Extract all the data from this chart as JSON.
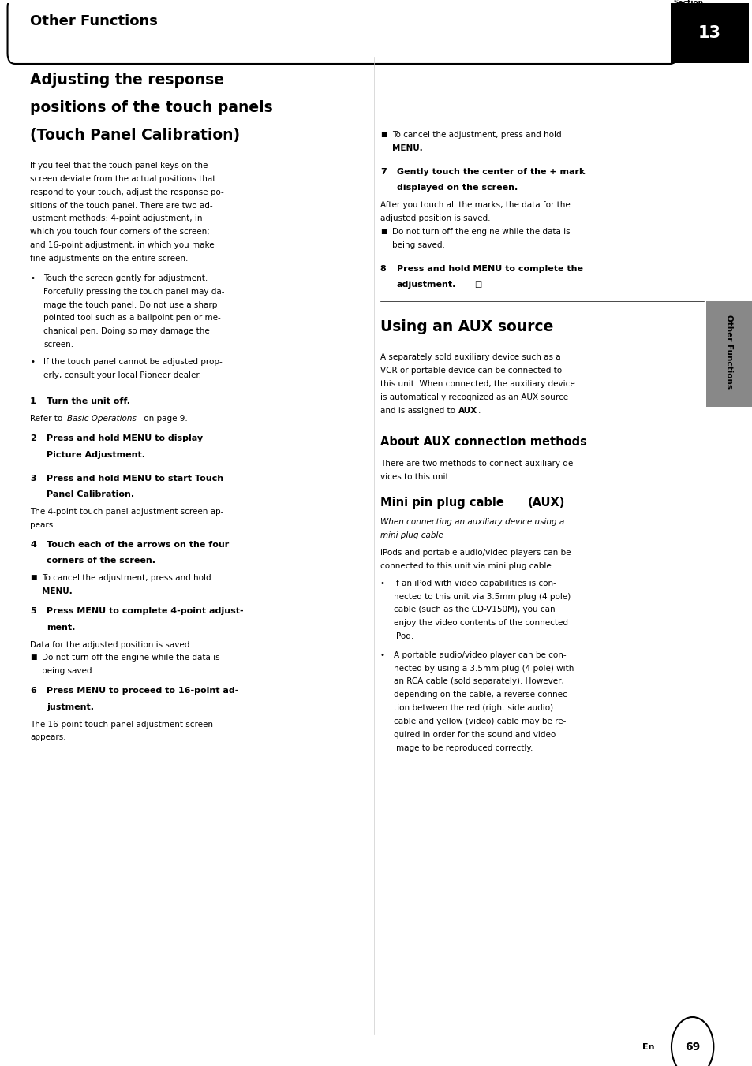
{
  "bg_color": "#ffffff",
  "header_bar_text": "Other Functions",
  "section_num": "13",
  "section_label": "Section",
  "side_tab_text": "Other Functions",
  "page_num": "69"
}
